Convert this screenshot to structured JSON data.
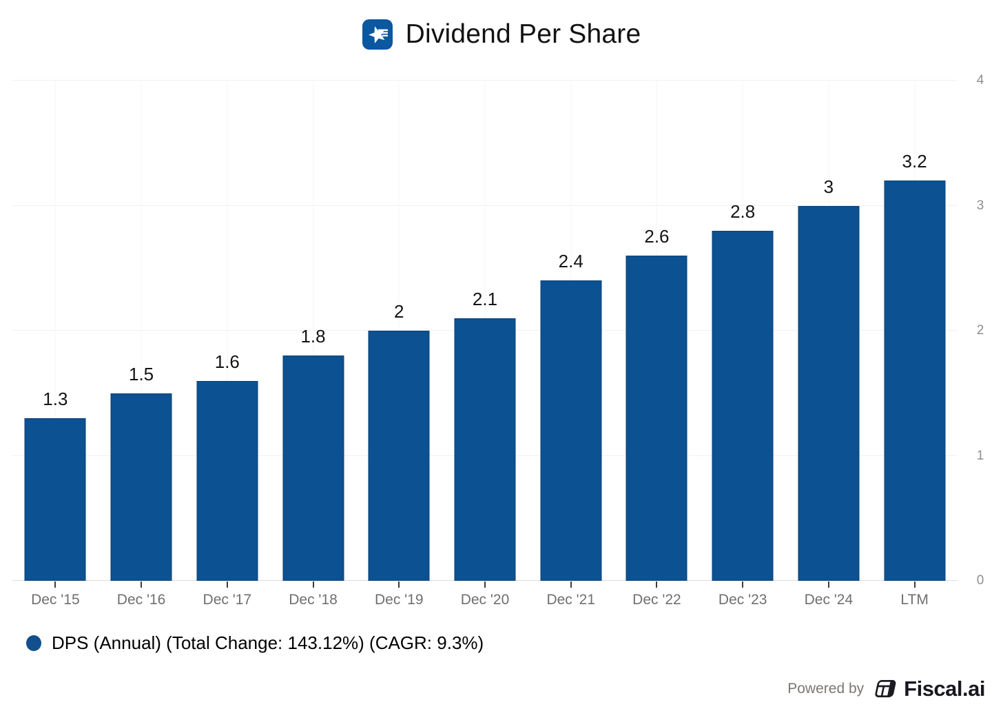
{
  "title": "Dividend Per Share",
  "title_icon": "blue-star-badge-icon",
  "chart_data": {
    "type": "bar",
    "categories": [
      "Dec '15",
      "Dec '16",
      "Dec '17",
      "Dec '18",
      "Dec '19",
      "Dec '20",
      "Dec '21",
      "Dec '22",
      "Dec '23",
      "Dec '24",
      "LTM"
    ],
    "values": [
      1.3,
      1.5,
      1.6,
      1.8,
      2,
      2.1,
      2.4,
      2.6,
      2.8,
      3,
      3.2
    ],
    "series_name": "DPS (Annual)",
    "title": "Dividend Per Share",
    "xlabel": "",
    "ylabel": "",
    "ylim": [
      0,
      4
    ],
    "yticks": [
      0,
      1,
      2,
      3,
      4
    ],
    "y_axis_side": "right",
    "grid": true,
    "bar_color": "#0c5191",
    "data_labels": true,
    "legend_position": "bottom-left"
  },
  "legend": {
    "label": "DPS (Annual) (Total Change: 143.12%) (CAGR: 9.3%)",
    "marker_color": "#134f8c"
  },
  "footer": {
    "powered_by": "Powered by",
    "brand": "Fiscal.ai"
  },
  "colors": {
    "bar": "#0c5191",
    "title_icon_bg": "#0b57a0",
    "gridline": "#f0f0f0",
    "axis_line": "#dcdcdc",
    "x_label": "#6f6f6f",
    "y_label": "#8e8e8e",
    "brand_text": "#181820"
  }
}
